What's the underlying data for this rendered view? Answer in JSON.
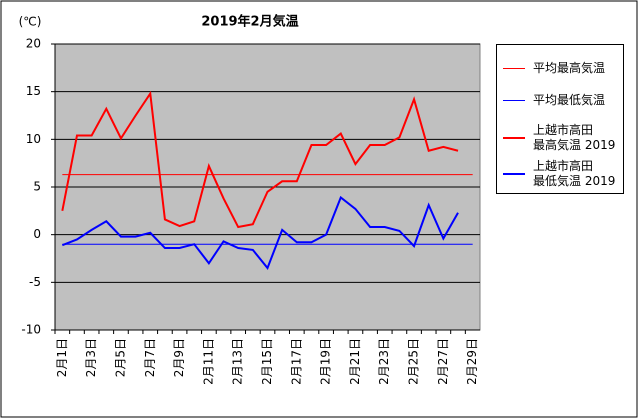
{
  "chart_data": {
    "type": "line",
    "title": "2019年2月気温",
    "y_unit": "(℃)",
    "categories": [
      "2月1日",
      null,
      "2月3日",
      null,
      "2月5日",
      null,
      "2月7日",
      null,
      "2月9日",
      null,
      "2月11日",
      null,
      "2月13日",
      null,
      "2月15日",
      null,
      "2月17日",
      null,
      "2月19日",
      null,
      "2月21日",
      null,
      "2月23日",
      null,
      "2月25日",
      null,
      "2月27日",
      null,
      "2月29日"
    ],
    "ylim": [
      -10,
      20
    ],
    "yticks": [
      -10,
      -5,
      0,
      5,
      10,
      15,
      20
    ],
    "grid": true,
    "legend": "right",
    "series": [
      {
        "name": "平均最高気温",
        "color": "#ff0000",
        "width": 1,
        "values": [
          6.3,
          6.3,
          6.3,
          6.3,
          6.3,
          6.3,
          6.3,
          6.3,
          6.3,
          6.3,
          6.3,
          6.3,
          6.3,
          6.3,
          6.3,
          6.3,
          6.3,
          6.3,
          6.3,
          6.3,
          6.3,
          6.3,
          6.3,
          6.3,
          6.3,
          6.3,
          6.3,
          6.3,
          6.3
        ]
      },
      {
        "name": "平均最低気温",
        "color": "#0000ff",
        "width": 1,
        "values": [
          -1.0,
          -1.0,
          -1.0,
          -1.0,
          -1.0,
          -1.0,
          -1.0,
          -1.0,
          -1.0,
          -1.0,
          -1.0,
          -1.0,
          -1.0,
          -1.0,
          -1.0,
          -1.0,
          -1.0,
          -1.0,
          -1.0,
          -1.0,
          -1.0,
          -1.0,
          -1.0,
          -1.0,
          -1.0,
          -1.0,
          -1.0,
          -1.0,
          -1.0
        ]
      },
      {
        "name": "上越市高田\n最高気温 2019",
        "color": "#ff0000",
        "width": 2,
        "values": [
          2.5,
          10.4,
          10.4,
          13.2,
          10.1,
          12.5,
          14.8,
          1.6,
          0.9,
          1.4,
          7.2,
          3.8,
          0.8,
          1.1,
          4.5,
          5.6,
          5.6,
          9.4,
          9.4,
          10.6,
          7.4,
          9.4,
          9.4,
          10.2,
          14.2,
          8.8,
          9.2,
          8.8,
          null
        ]
      },
      {
        "name": "上越市高田\n最低気温 2019",
        "color": "#0000ff",
        "width": 2,
        "values": [
          -1.1,
          -0.5,
          0.5,
          1.4,
          -0.2,
          -0.2,
          0.2,
          -1.4,
          -1.4,
          -1.0,
          -3.0,
          -0.7,
          -1.4,
          -1.6,
          -3.5,
          0.5,
          -0.8,
          -0.8,
          0.0,
          3.9,
          2.7,
          0.8,
          0.8,
          0.4,
          -1.2,
          3.1,
          -0.4,
          2.3,
          null
        ]
      }
    ]
  }
}
